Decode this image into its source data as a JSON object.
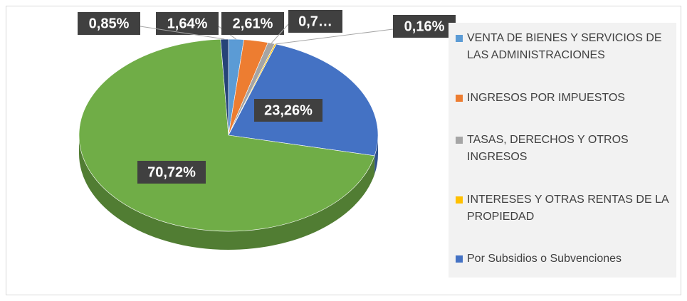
{
  "chart_data": {
    "type": "pie3d",
    "categories": [
      "VENTA DE BIENES Y SERVICIOS DE LAS ADMINISTRACIONES",
      "INGRESOS POR IMPUESTOS",
      "TASAS, DERECHOS Y OTROS INGRESOS",
      "INTERESES Y OTRAS RENTAS DE LA PROPIEDAD",
      "Por Subsidios o Subvenciones",
      null,
      null
    ],
    "values": [
      1.64,
      2.61,
      0.76,
      0.16,
      23.26,
      70.72,
      0.85
    ],
    "value_labels": [
      "1,64%",
      "2,61%",
      "0,7…",
      "0,16%",
      "23,26%",
      "70,72%",
      "0,85%"
    ],
    "colors": [
      "#5b9bd5",
      "#ed7d31",
      "#a5a5a5",
      "#ffc000",
      "#4472c4",
      "#70ad47",
      "#264478"
    ],
    "legend": "right"
  }
}
